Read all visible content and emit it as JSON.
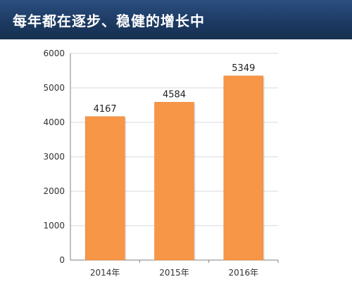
{
  "header": {
    "title": "每年都在逐步、稳健的增长中"
  },
  "colors": {
    "bar": "#f79646",
    "bar_edge": "#e0823a",
    "grid": "#d9d9d9",
    "axis": "#808080",
    "header": "#1d3a63"
  },
  "chart_data": {
    "type": "bar",
    "title": "",
    "xlabel": "",
    "ylabel": "",
    "categories": [
      "2014年",
      "2015年",
      "2016年"
    ],
    "values": [
      4167,
      4584,
      5349
    ],
    "ylim": [
      0,
      6000
    ],
    "yticks": [
      0,
      1000,
      2000,
      3000,
      4000,
      5000,
      6000
    ],
    "grid": true,
    "data_labels": true,
    "legend": "none"
  }
}
